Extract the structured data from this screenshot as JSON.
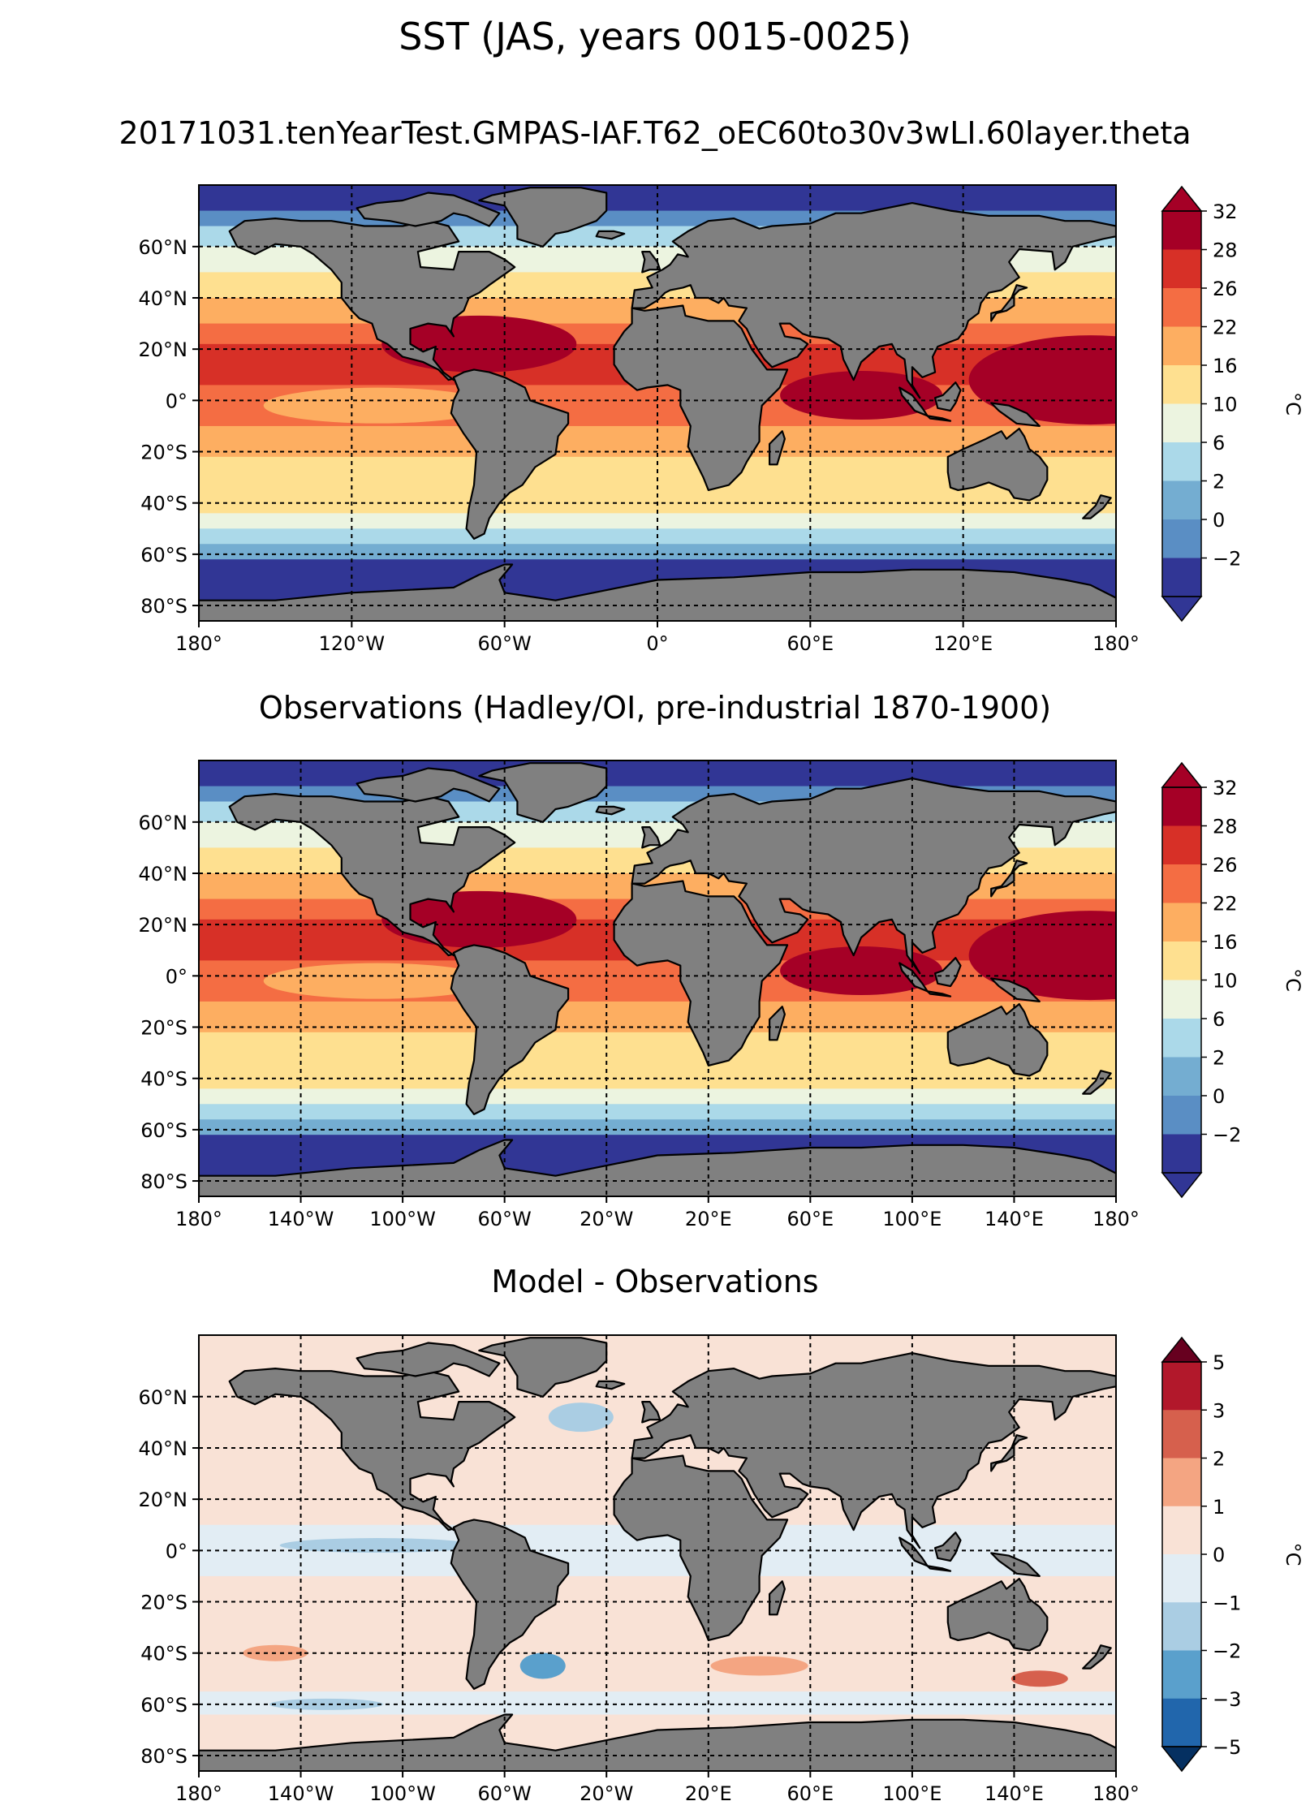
{
  "title": "SST (JAS, years 0015-0025)",
  "panels": [
    {
      "id": "model",
      "title": "20171031.tenYearTest.GMPAS-IAF.T62_oEC60to30v3wLI.60layer.theta",
      "lon_ticks": [
        "180°",
        "120°W",
        "60°W",
        "0°",
        "60°E",
        "120°E",
        "180°"
      ],
      "lat_ticks": [
        "60°N",
        "40°N",
        "20°N",
        "0°",
        "20°S",
        "40°S",
        "60°S",
        "80°S"
      ],
      "colorbar": {
        "unit": "°C",
        "ticks": [
          "32",
          "28",
          "26",
          "22",
          "16",
          "10",
          "6",
          "2",
          "0",
          "−2"
        ],
        "colors": [
          "#a50026",
          "#d73027",
          "#f46d43",
          "#fdae61",
          "#fee090",
          "#ecf4e0",
          "#abd9e9",
          "#74add1",
          "#5a8ec4",
          "#313695"
        ],
        "overflow_high": "#a50026",
        "overflow_low": "#313695"
      }
    },
    {
      "id": "obs",
      "title": "Observations (Hadley/OI, pre-industrial 1870-1900)",
      "lon_ticks": [
        "180°",
        "140°W",
        "100°W",
        "60°W",
        "20°W",
        "20°E",
        "60°E",
        "100°E",
        "140°E",
        "180°"
      ],
      "lat_ticks": [
        "60°N",
        "40°N",
        "20°N",
        "0°",
        "20°S",
        "40°S",
        "60°S",
        "80°S"
      ],
      "colorbar": {
        "unit": "°C",
        "ticks": [
          "32",
          "28",
          "26",
          "22",
          "16",
          "10",
          "6",
          "2",
          "0",
          "−2"
        ],
        "colors": [
          "#a50026",
          "#d73027",
          "#f46d43",
          "#fdae61",
          "#fee090",
          "#ecf4e0",
          "#abd9e9",
          "#74add1",
          "#5a8ec4",
          "#313695"
        ],
        "overflow_high": "#a50026",
        "overflow_low": "#313695"
      }
    },
    {
      "id": "diff",
      "title": "Model - Observations",
      "lon_ticks": [
        "180°",
        "140°W",
        "100°W",
        "60°W",
        "20°W",
        "20°E",
        "60°E",
        "100°E",
        "140°E",
        "180°"
      ],
      "lat_ticks": [
        "60°N",
        "40°N",
        "20°N",
        "0°",
        "20°S",
        "40°S",
        "60°S",
        "80°S"
      ],
      "colorbar": {
        "unit": "°C",
        "ticks": [
          "5",
          "3",
          "2",
          "1",
          "0",
          "−1",
          "−2",
          "−3",
          "−5"
        ],
        "colors": [
          "#b2182b",
          "#d6604d",
          "#f4a582",
          "#f9e2d6",
          "#e2edf4",
          "#aacde3",
          "#5aa0cc",
          "#2166ac"
        ],
        "overflow_high": "#67001f",
        "overflow_low": "#053061"
      }
    }
  ],
  "colors": {
    "land": "#808080",
    "coast": "#000000",
    "frame": "#000000"
  }
}
